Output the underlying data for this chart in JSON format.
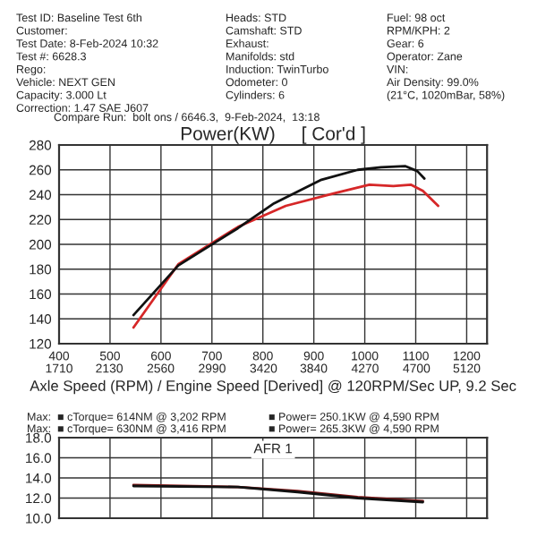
{
  "chart_data": [
    {
      "type": "line",
      "title": "Power(KW)     [ Cor'd ]",
      "xlabel": "Axle Speed (RPM) / Engine Speed [Derived] @ 120RPM/Sec UP, 9.2 Sec",
      "xlim": [
        400,
        1240
      ],
      "ylim": [
        120,
        280
      ],
      "xticks": [
        400,
        500,
        600,
        700,
        800,
        900,
        1000,
        1100,
        1200
      ],
      "x2lim": [
        1710,
        5290
      ],
      "x2ticks": [
        1710,
        2130,
        2560,
        2990,
        3420,
        3840,
        4270,
        4700,
        5120
      ],
      "yticks": [
        120,
        140,
        160,
        180,
        200,
        220,
        240,
        260,
        280
      ],
      "grid": true,
      "legend": false,
      "series": [
        {
          "color": "#d62728",
          "x": [
            546,
            634,
            751,
            845,
            939,
            1009,
            1056,
            1091,
            1114,
            1144
          ],
          "values": [
            133,
            184,
            214,
            231,
            241,
            248,
            247,
            248,
            243,
            231
          ]
        },
        {
          "color": "#111111",
          "x": [
            546,
            634,
            751,
            822,
            915,
            986,
            1032,
            1079,
            1103,
            1117
          ],
          "values": [
            143,
            183,
            213,
            233,
            252,
            260,
            262,
            263,
            259,
            253
          ]
        }
      ],
      "annotations": [
        "Test ID: Baseline Test 6th",
        "Heads: STD",
        "Fuel: 98 oct",
        "Customer:",
        "Camshaft: STD",
        "RPM/KPH: 2",
        "Test Date: 8-Feb-2024 10:32",
        "Exhaust:",
        "Gear: 6",
        "Test #: 6628.3",
        "Manifolds: std",
        "Operator: Zane",
        "Rego:",
        "Induction: TwinTurbo",
        "VIN:",
        "Vehicle: NEXT GEN",
        "Odometer: 0",
        "Air Density: 99.0%",
        "Capacity: 3.000 Lt",
        "Cylinders: 6",
        "(21°C, 1020mBar, 58%)",
        "Correction: 1.47 SAE J607",
        "Compare Run:  bolt ons / 6646.3,  9-Feb-2024,  13:18",
        "Max:  ■ cTorque= 614NM @ 3,202 RPM",
        "■ Power= 250.1KW @ 4,590 RPM",
        "Max:  ■ cTorque= 630NM @ 3,416 RPM",
        "■ Power= 265.3KW @ 4,590 RPM"
      ]
    },
    {
      "type": "line",
      "title": "AFR 1",
      "xlim": [
        400,
        1240
      ],
      "ylim": [
        10,
        18
      ],
      "xticks": [
        400,
        500,
        600,
        700,
        800,
        900,
        1000,
        1100,
        1200
      ],
      "yticks": [
        {
          "value": 10,
          "label": "10.0"
        },
        {
          "value": 12,
          "label": "12.0"
        },
        {
          "value": 14,
          "label": "14.0"
        },
        {
          "value": 16,
          "label": "16.0"
        },
        {
          "value": 18,
          "label": "18.0"
        }
      ],
      "grid": true,
      "legend": false,
      "tick_labels": "y",
      "series": [
        {
          "color": "#8b1a1a",
          "x": [
            546,
            751,
            868,
            986,
            1114
          ],
          "values": [
            13.3,
            13.1,
            12.7,
            12.1,
            11.7
          ]
        },
        {
          "color": "#111111",
          "x": [
            546,
            751,
            868,
            986,
            1114
          ],
          "values": [
            13.2,
            13.1,
            12.6,
            12.0,
            11.6
          ]
        }
      ]
    }
  ]
}
